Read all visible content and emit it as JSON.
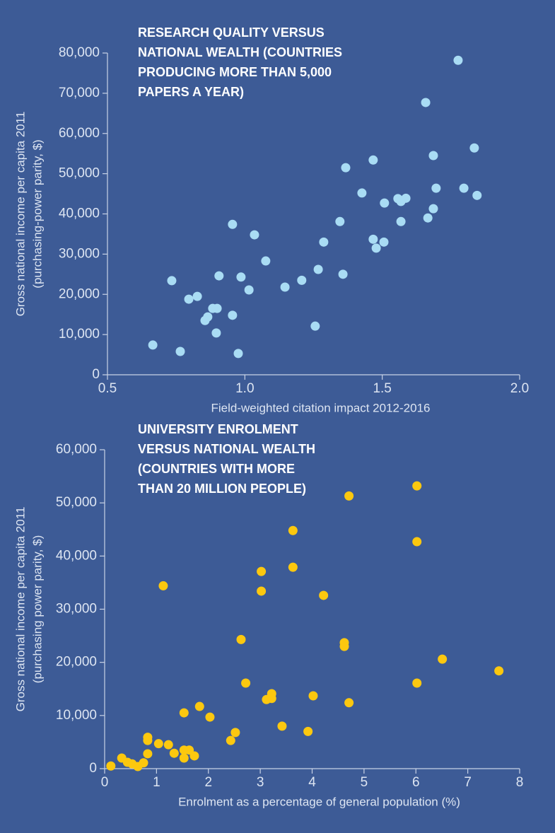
{
  "chart_data": [
    {
      "type": "scatter",
      "title": [
        "RESEARCH QUALITY VERSUS",
        "NATIONAL WEALTH (COUNTRIES",
        "PRODUCING MORE THAN 5,000",
        "PAPERS A YEAR)"
      ],
      "x_label": "Field-weighted citation impact 2012-2016",
      "y_label": [
        "Gross national income per capita 2011",
        "(purchasing-power parity, $)"
      ],
      "color": "#a9dcf4",
      "xlim": [
        0.5,
        2.0
      ],
      "xticks": [
        0.5,
        {
          "value": 1,
          "label": "1.0"
        },
        1.5,
        {
          "value": 2,
          "label": "2.0"
        }
      ],
      "ylim": [
        0,
        80000
      ],
      "yticks": [
        0,
        {
          "value": 10000,
          "label": "10,000"
        },
        {
          "value": 20000,
          "label": "20,000"
        },
        {
          "value": 30000,
          "label": "30,000"
        },
        {
          "value": 40000,
          "label": "40,000"
        },
        {
          "value": 50000,
          "label": "50,000"
        },
        {
          "value": 60000,
          "label": "60,000"
        },
        {
          "value": 70000,
          "label": "70,000"
        },
        {
          "value": 80000,
          "label": "80,000"
        }
      ],
      "x": [
        0.665,
        0.765,
        0.734,
        0.796,
        0.827,
        0.855,
        0.865,
        0.883,
        0.899,
        0.896,
        0.906,
        0.955,
        0.955,
        0.976,
        0.986,
        1.015,
        1.035,
        1.076,
        1.146,
        1.207,
        1.256,
        1.267,
        1.287,
        1.346,
        1.357,
        1.367,
        1.426,
        1.467,
        1.467,
        1.478,
        1.506,
        1.508,
        1.557,
        1.568,
        1.568,
        1.586,
        1.658,
        1.666,
        1.686,
        1.686,
        1.696,
        1.776,
        1.797,
        1.835,
        1.845
      ],
      "values": [
        7400,
        5800,
        23400,
        18800,
        19500,
        13500,
        14400,
        16500,
        16500,
        10400,
        24600,
        14800,
        37400,
        5300,
        24300,
        21100,
        34800,
        28300,
        21800,
        23500,
        12100,
        26200,
        33000,
        38100,
        25000,
        51500,
        45200,
        53400,
        33700,
        31500,
        33000,
        42700,
        43800,
        43100,
        38100,
        43900,
        67700,
        39000,
        54500,
        41300,
        46400,
        78200,
        46400,
        56400,
        44600
      ]
    },
    {
      "type": "scatter",
      "title": [
        "UNIVERSITY ENROLMENT",
        "VERSUS NATIONAL WEALTH",
        "(COUNTRIES WITH MORE",
        "THAN 20 MILLION PEOPLE)"
      ],
      "x_label": "Enrolment as a percentage of general population (%)",
      "y_label": [
        "Gross national income per capita 2011",
        "(purchasing power parity, $)"
      ],
      "color": "#fcc80f",
      "xlim": [
        0,
        8
      ],
      "xticks": [
        0,
        1,
        2,
        3,
        4,
        5,
        6,
        7,
        8
      ],
      "ylim": [
        0,
        60000
      ],
      "yticks": [
        0,
        {
          "value": 10000,
          "label": "10,000"
        },
        {
          "value": 20000,
          "label": "20,000"
        },
        {
          "value": 30000,
          "label": "30,000"
        },
        {
          "value": 40000,
          "label": "40,000"
        },
        {
          "value": 50000,
          "label": "50,000"
        },
        {
          "value": 60000,
          "label": "60,000"
        }
      ],
      "x": [
        0.12,
        0.33,
        0.44,
        0.53,
        0.64,
        0.75,
        0.83,
        0.83,
        0.83,
        1.04,
        1.13,
        1.23,
        1.34,
        1.53,
        1.53,
        1.53,
        1.63,
        1.73,
        1.83,
        2.03,
        2.43,
        2.52,
        2.63,
        2.72,
        3.02,
        3.02,
        3.12,
        3.22,
        3.22,
        3.42,
        3.63,
        3.63,
        3.92,
        4.02,
        4.22,
        4.62,
        4.62,
        4.71,
        4.71,
        6.02,
        6.02,
        6.02,
        6.51,
        7.6
      ],
      "values": [
        500,
        2000,
        1200,
        900,
        400,
        1100,
        2800,
        5900,
        5300,
        4700,
        34400,
        4500,
        2900,
        10500,
        3500,
        2000,
        3500,
        2400,
        11700,
        9700,
        5300,
        6800,
        24300,
        16100,
        37100,
        33400,
        13000,
        14100,
        13200,
        8000,
        44800,
        37900,
        7000,
        13700,
        32600,
        23700,
        23000,
        51300,
        12400,
        53200,
        42700,
        16100,
        20600,
        18400
      ]
    }
  ]
}
